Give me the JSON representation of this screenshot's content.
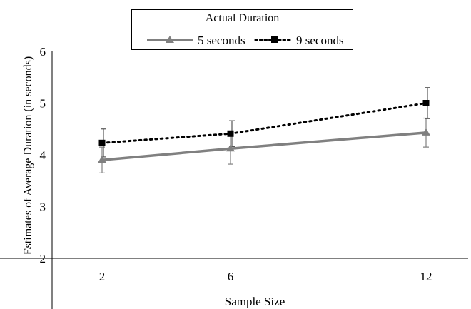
{
  "chart_data": {
    "type": "line",
    "xlabel": "Sample Size",
    "ylabel": "Estimates of Average Duration (in seconds)",
    "categories": [
      "2",
      "6",
      "12"
    ],
    "x": [
      2,
      6,
      12
    ],
    "ylim": [
      2,
      6
    ],
    "yticks": [
      2,
      3,
      4,
      5,
      6
    ],
    "grid": false,
    "legend": {
      "title": "Actual Duration",
      "placement": "top-center"
    },
    "series": [
      {
        "name": "5 seconds",
        "values": [
          3.9,
          4.12,
          4.43
        ],
        "error": [
          0.25,
          0.3,
          0.28
        ],
        "color": "#808080",
        "style": "solid",
        "marker": "triangle"
      },
      {
        "name": "9 seconds",
        "values": [
          4.23,
          4.41,
          5.0
        ],
        "error": [
          0.27,
          0.25,
          0.3
        ],
        "color": "#000000",
        "style": "dotted",
        "marker": "square"
      }
    ]
  }
}
